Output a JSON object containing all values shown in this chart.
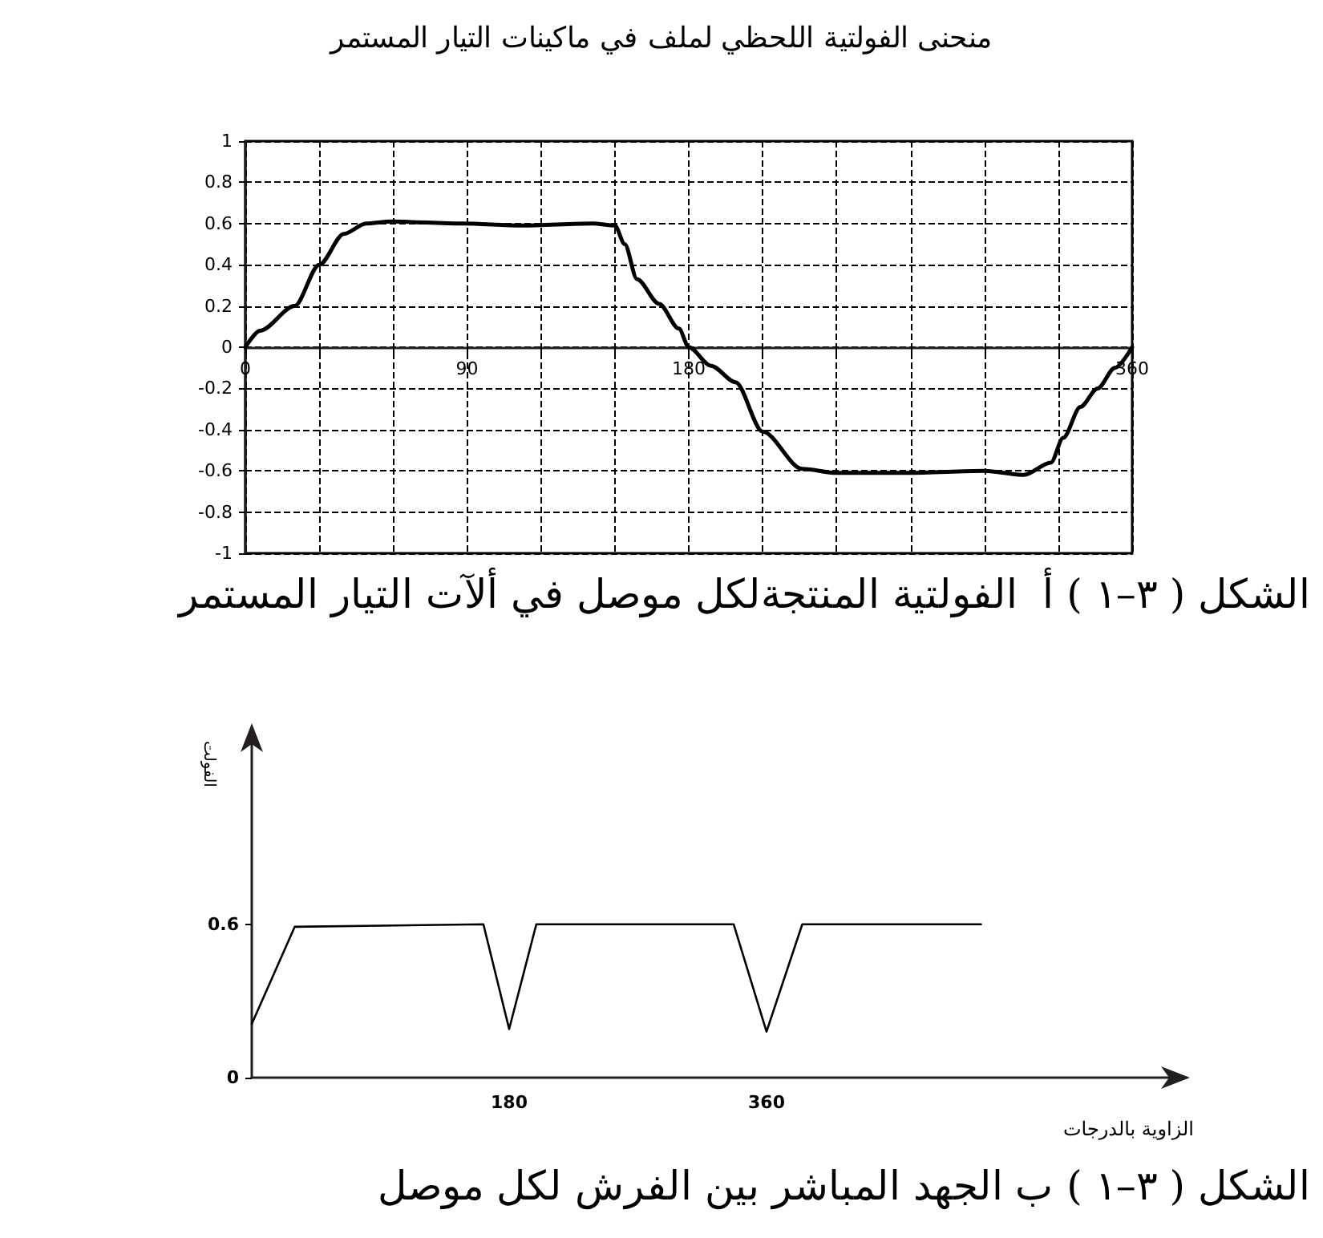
{
  "chart_data": [
    {
      "type": "line",
      "title": "منحنى الفولتية اللحظي لملف في ماكينات التيار المستمر",
      "annotations": [
        "الشكل ( ٣–١ ) أ  الفولتية المنتجةلكل موصل في ألآت التيار المستمر"
      ],
      "x": [
        0,
        6,
        20,
        30,
        40,
        49,
        59,
        88,
        112,
        141,
        150,
        154,
        159,
        168,
        176,
        180,
        189,
        199,
        210,
        226,
        240,
        269,
        300,
        316,
        327,
        332,
        339,
        346,
        353,
        360
      ],
      "series": [
        {
          "color": "#000000",
          "values": [
            0,
            0.08,
            0.2,
            0.4,
            0.55,
            0.6,
            0.61,
            0.6,
            0.59,
            0.6,
            0.59,
            0.5,
            0.33,
            0.21,
            0.09,
            0,
            -0.09,
            -0.17,
            -0.41,
            -0.59,
            -0.61,
            -0.61,
            -0.6,
            -0.62,
            -0.56,
            -0.44,
            -0.29,
            -0.2,
            -0.1,
            0
          ]
        }
      ],
      "xlim": [
        0,
        360
      ],
      "ylim": [
        -1,
        1
      ],
      "xticks": [
        0,
        {
          "value": 30,
          "label": null
        },
        {
          "value": 60,
          "label": null
        },
        90,
        {
          "value": 120,
          "label": null
        },
        {
          "value": 150,
          "label": null
        },
        180,
        {
          "value": 210,
          "label": null
        },
        {
          "value": 240,
          "label": null
        },
        {
          "value": 270,
          "label": null
        },
        {
          "value": 300,
          "label": null
        },
        {
          "value": 330,
          "label": null
        },
        360
      ],
      "yticks": [
        -1,
        -0.8,
        -0.6,
        -0.4,
        -0.2,
        0,
        0.2,
        0.4,
        0.6,
        0.8,
        1
      ],
      "grid": true,
      "marker": "none",
      "line_style": "solid"
    },
    {
      "type": "line",
      "xlabel": "الزاوية بالدرجات",
      "ylabel": "الفولت",
      "annotations": [
        "الشكل ( ٣–١ ) ب الجهد المباشر بين الفرش لكل موصل"
      ],
      "x": [
        0,
        30,
        162,
        180,
        199,
        337,
        360,
        385,
        510
      ],
      "series": [
        {
          "color": "#000000",
          "values": [
            0.21,
            0.59,
            0.6,
            0.19,
            0.6,
            0.6,
            0.18,
            0.6,
            0.6
          ]
        }
      ],
      "xlim": [
        0,
        646
      ],
      "ylim": [
        0,
        1.33
      ],
      "xticks": [
        180,
        360
      ],
      "yticks": [
        0,
        0.6
      ],
      "grid": false,
      "marker": "none",
      "line_style": "solid"
    }
  ]
}
